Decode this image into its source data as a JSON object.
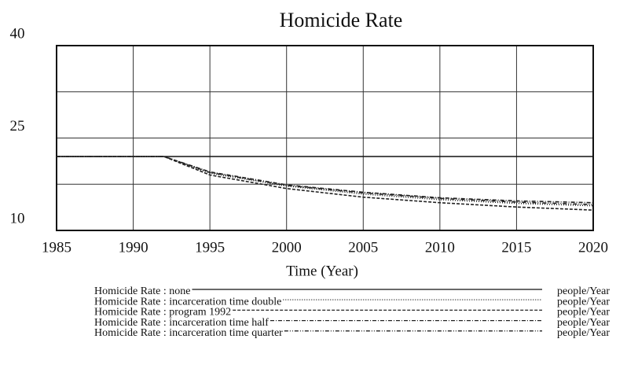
{
  "chart_data": {
    "type": "line",
    "title": "Homicide Rate",
    "x_label": "Time (Year)",
    "x": [
      1985,
      1990,
      1992,
      1995,
      2000,
      2005,
      2010,
      2015,
      2020
    ],
    "xlim": [
      1985,
      2020
    ],
    "xticks": [
      1985,
      1990,
      1995,
      2000,
      2005,
      2010,
      2015,
      2020
    ],
    "ylim": [
      10,
      40
    ],
    "yticks": [
      10,
      25,
      40
    ],
    "grid": true,
    "legend_unit": "people/Year",
    "series": [
      {
        "name": "Homicide Rate : none",
        "color": "#111111",
        "style": "solid",
        "values": [
          22,
          22,
          22,
          22,
          22,
          22,
          22,
          22,
          22
        ]
      },
      {
        "name": "Homicide Rate : incarceration time double",
        "color": "#222222",
        "style": "dotted",
        "values": [
          22,
          22,
          22,
          19.3,
          17.2,
          15.9,
          15.0,
          14.4,
          14.0
        ]
      },
      {
        "name": "Homicide Rate : program 1992",
        "color": "#222222",
        "style": "dashed",
        "values": [
          22,
          22,
          22,
          19.0,
          16.8,
          15.4,
          14.5,
          13.8,
          13.3
        ]
      },
      {
        "name": "Homicide Rate : incarceration time half",
        "color": "#222222",
        "style": "dashdot",
        "values": [
          22,
          22,
          22,
          19.5,
          17.4,
          16.2,
          15.3,
          14.8,
          14.5
        ]
      },
      {
        "name": "Homicide Rate : incarceration time quarter",
        "color": "#222222",
        "style": "dashdotdot",
        "values": [
          22,
          22,
          22,
          19.4,
          17.3,
          16.1,
          15.2,
          14.6,
          14.2
        ]
      }
    ]
  }
}
